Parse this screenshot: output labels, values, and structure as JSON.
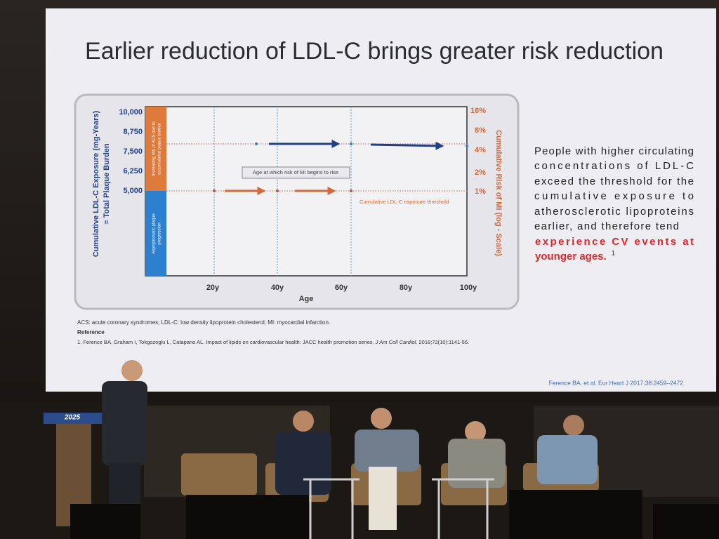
{
  "slide": {
    "title": "Earlier reduction of LDL-C brings greater risk reduction",
    "chart": {
      "y_axis_title": [
        "Cumulative LDL-C Exposure (mg-Years)",
        "≈ Total Plaque Burden"
      ],
      "y_ticks": [
        "10,000",
        "8,750",
        "7,500",
        "6,250",
        "5,000"
      ],
      "y2_axis_title": "Cumulative Risk of MI (log - Scale)",
      "y2_ticks": [
        "16%",
        "8%",
        "4%",
        "2%",
        "1%"
      ],
      "x_ticks": [
        "20y",
        "40y",
        "60y",
        "80y",
        "100y"
      ],
      "x_axis_title": "Age",
      "upper_band": [
        "Increasing risk of ACS due to",
        "accumulated plaque burden"
      ],
      "lower_band": [
        "Asymptomatic plaque",
        "progression"
      ],
      "mi_label": "Age at which risk of MI begins to rise",
      "threshold_label": "Cumulative LDL-C exposure threshold"
    },
    "side_text": {
      "lines": [
        "People with higher circulating",
        "concentrations of LDL-C",
        "exceed the threshold for the",
        "cumulative exposure to",
        "atherosclerotic lipoproteins",
        "earlier, and therefore tend"
      ],
      "highlight": [
        "experience CV events at",
        "younger ages."
      ],
      "superscript": "1"
    },
    "abbreviations": "ACS: acute coronary syndromes; LDL-C: low density lipoprotein cholesterol; MI: myocardial infarction.",
    "reference_heading": "Reference",
    "reference": [
      "1. Ference BA, Graham I, Tokgozoglu L, Catapano AL. Impact of lipids on cardiovascular health: JACC health promotion series. ",
      "J Am Coll Cardiol.",
      " 2018;72(10):1141-56."
    ],
    "citation": "Ference BA, et al. Eur Heart J 2017;38:2459–2472"
  },
  "stage": {
    "podium_logo": "2025"
  }
}
